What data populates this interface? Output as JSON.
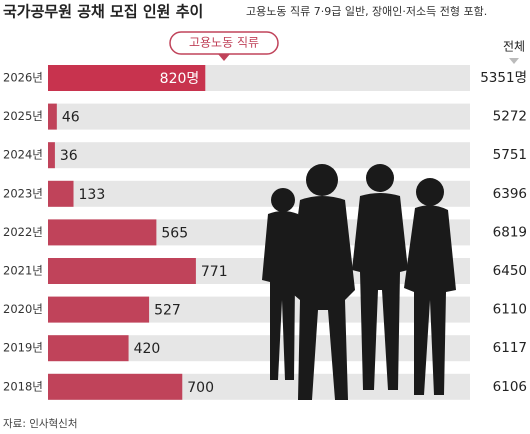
{
  "chart_data": {
    "type": "bar",
    "title": "국가공무원 공채 모집 인원 추이",
    "subtitle": "고용노동 직류 7·9급 일반, 장애인·저소득 전형 포함.",
    "categories": [
      "2026년",
      "2025년",
      "2024년",
      "2023년",
      "2022년",
      "2021년",
      "2020년",
      "2019년",
      "2018년"
    ],
    "series": [
      {
        "name": "고용노동 직류",
        "color": "#c0435a",
        "values": [
          820,
          46,
          36,
          133,
          565,
          771,
          527,
          420,
          700
        ],
        "value_labels": [
          "820명",
          "46",
          "36",
          "133",
          "565",
          "771",
          "527",
          "420",
          "700"
        ]
      },
      {
        "name": "전체",
        "values": [
          5351,
          5272,
          5751,
          6396,
          6819,
          6450,
          6110,
          6117,
          6106
        ],
        "value_labels": [
          "5351명",
          "5272",
          "5751",
          "6396",
          "6819",
          "6450",
          "6110",
          "6117",
          "6106"
        ]
      }
    ],
    "xlim": [
      0,
      2200
    ],
    "source": "자료: 인사혁신처"
  }
}
